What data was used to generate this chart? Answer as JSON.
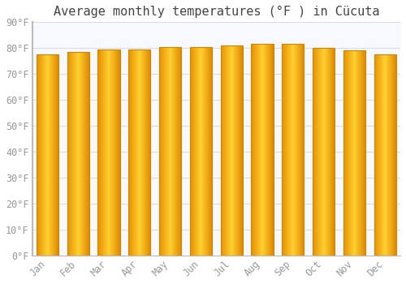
{
  "months": [
    "Jan",
    "Feb",
    "Mar",
    "Apr",
    "May",
    "Jun",
    "Jul",
    "Aug",
    "Sep",
    "Oct",
    "Nov",
    "Dec"
  ],
  "values": [
    77.5,
    78.5,
    79.5,
    79.5,
    80.5,
    80.5,
    81.0,
    81.5,
    81.5,
    80.0,
    79.0,
    77.5
  ],
  "title": "Average monthly temperatures (°F ) in Cücuta",
  "bar_color_left": "#FFC020",
  "bar_color_center": "#FFD060",
  "bar_color_right": "#FFA010",
  "bar_edge_color": "#CC8800",
  "background_color": "#FFFFFF",
  "plot_bg_color": "#F8F8FF",
  "grid_color": "#DDDDDD",
  "text_color": "#999999",
  "ylim": [
    0,
    90
  ],
  "yticks": [
    0,
    10,
    20,
    30,
    40,
    50,
    60,
    70,
    80,
    90
  ],
  "ytick_labels": [
    "0°F",
    "10°F",
    "20°F",
    "30°F",
    "40°F",
    "50°F",
    "60°F",
    "70°F",
    "80°F",
    "90°F"
  ],
  "title_fontsize": 11,
  "tick_fontsize": 8.5
}
